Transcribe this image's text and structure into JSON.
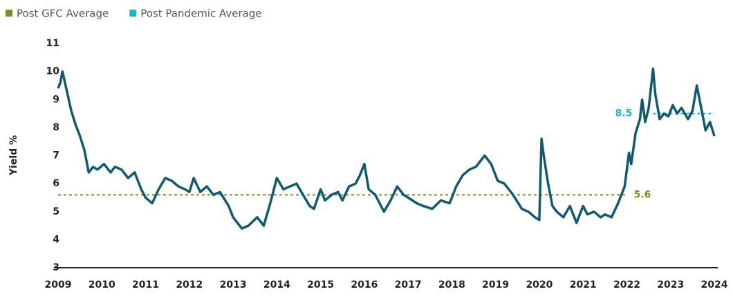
{
  "chart_data": {
    "type": "line",
    "y_label": "Yield %",
    "x": [
      2009.0,
      2009.05,
      2009.1,
      2009.2,
      2009.3,
      2009.4,
      2009.5,
      2009.6,
      2009.7,
      2009.8,
      2009.9,
      2010.05,
      2010.2,
      2010.3,
      2010.45,
      2010.6,
      2010.75,
      2010.9,
      2011.0,
      2011.15,
      2011.3,
      2011.45,
      2011.6,
      2011.75,
      2011.9,
      2012.0,
      2012.1,
      2012.25,
      2012.4,
      2012.55,
      2012.7,
      2012.9,
      2013.0,
      2013.1,
      2013.2,
      2013.35,
      2013.55,
      2013.7,
      2013.85,
      2014.0,
      2014.15,
      2014.3,
      2014.45,
      2014.6,
      2014.75,
      2014.85,
      2015.0,
      2015.1,
      2015.25,
      2015.4,
      2015.5,
      2015.65,
      2015.8,
      2015.9,
      2016.0,
      2016.1,
      2016.25,
      2016.45,
      2016.6,
      2016.75,
      2016.9,
      2017.0,
      2017.2,
      2017.35,
      2017.55,
      2017.75,
      2017.95,
      2018.1,
      2018.25,
      2018.4,
      2018.55,
      2018.75,
      2018.9,
      2019.05,
      2019.2,
      2019.4,
      2019.6,
      2019.75,
      2019.9,
      2020.0,
      2020.05,
      2020.1,
      2020.2,
      2020.3,
      2020.4,
      2020.55,
      2020.7,
      2020.85,
      2021.0,
      2021.1,
      2021.25,
      2021.4,
      2021.5,
      2021.65,
      2021.8,
      2021.95,
      2022.05,
      2022.1,
      2022.2,
      2022.3,
      2022.35,
      2022.42,
      2022.5,
      2022.6,
      2022.65,
      2022.75,
      2022.85,
      2022.95,
      2023.05,
      2023.15,
      2023.25,
      2023.4,
      2023.5,
      2023.6,
      2023.7,
      2023.8,
      2023.9,
      2024.0
    ],
    "series": [
      {
        "name": "Yield",
        "color": "#0e5a70",
        "values": [
          9.4,
          9.6,
          10.0,
          9.3,
          8.6,
          8.1,
          7.7,
          7.2,
          6.4,
          6.6,
          6.5,
          6.7,
          6.4,
          6.6,
          6.5,
          6.2,
          6.4,
          5.8,
          5.5,
          5.3,
          5.8,
          6.2,
          6.1,
          5.9,
          5.8,
          5.7,
          6.2,
          5.7,
          5.9,
          5.6,
          5.7,
          5.2,
          4.8,
          4.6,
          4.4,
          4.5,
          4.8,
          4.5,
          5.3,
          6.2,
          5.8,
          5.9,
          6.0,
          5.6,
          5.2,
          5.1,
          5.8,
          5.4,
          5.6,
          5.7,
          5.4,
          5.9,
          6.0,
          6.3,
          6.7,
          5.8,
          5.6,
          5.0,
          5.4,
          5.9,
          5.6,
          5.5,
          5.3,
          5.2,
          5.1,
          5.4,
          5.3,
          5.9,
          6.3,
          6.5,
          6.6,
          7.0,
          6.7,
          6.1,
          6.0,
          5.6,
          5.1,
          5.0,
          4.8,
          4.7,
          7.6,
          7.0,
          6.0,
          5.2,
          5.0,
          4.8,
          5.2,
          4.6,
          5.2,
          4.9,
          5.0,
          4.8,
          4.9,
          4.8,
          5.3,
          5.9,
          7.1,
          6.7,
          7.8,
          8.3,
          9.0,
          8.2,
          8.7,
          10.1,
          9.2,
          8.3,
          8.5,
          8.4,
          8.8,
          8.5,
          8.7,
          8.3,
          8.6,
          9.5,
          8.7,
          7.9,
          8.2,
          7.7
        ]
      }
    ],
    "averages": [
      {
        "name": "Post GFC Average",
        "color": "#7d8b1f",
        "value": 5.6,
        "x": [
          2009.0,
          2022.0
        ]
      },
      {
        "name": "Post Pandemic Average",
        "color": "#1ab4d0",
        "value": 8.5,
        "x": [
          2022.6,
          2024.0
        ]
      }
    ],
    "xlim": [
      2009,
      2024
    ],
    "xticks": [
      2009,
      2010,
      2011,
      2012,
      2013,
      2014,
      2015,
      2016,
      2017,
      2018,
      2019,
      2020,
      2021,
      2022,
      2023,
      2024
    ],
    "ylim": [
      3,
      11
    ],
    "yticks": [
      3,
      4,
      5,
      6,
      7,
      8,
      9,
      10,
      11
    ],
    "grid": false
  }
}
